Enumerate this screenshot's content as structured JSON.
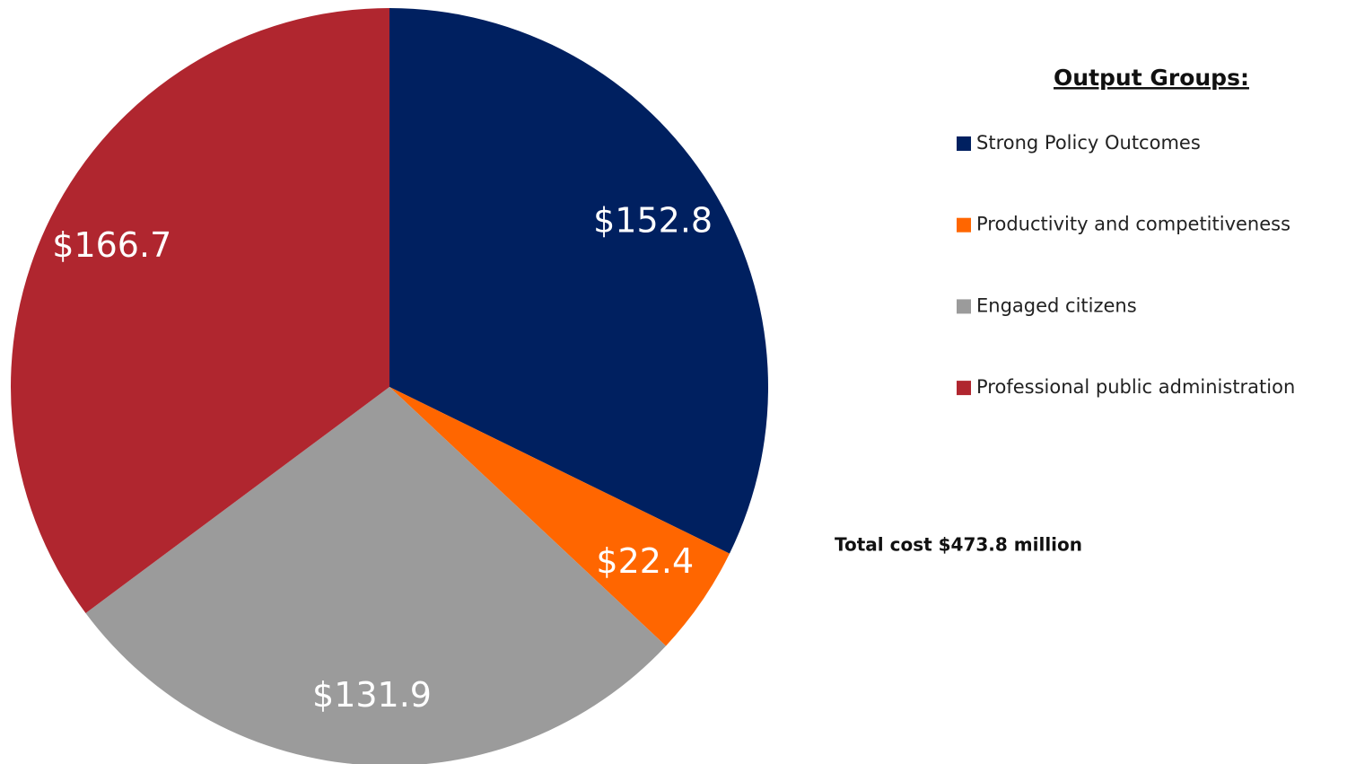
{
  "chart_data": {
    "type": "pie",
    "categories": [
      "Strong Policy Outcomes",
      "Productivity and competitiveness",
      "Engaged citizens",
      "Professional public administration"
    ],
    "values": [
      152.8,
      22.4,
      131.9,
      166.7
    ],
    "value_labels": [
      "$152.8",
      "$22.4",
      "$131.9",
      "$166.7"
    ],
    "colors": [
      "#002060",
      "#ff6600",
      "#9b9b9b",
      "#b0262f"
    ],
    "legend_title": "Output Groups:",
    "annotation": "Total cost $473.8 million"
  }
}
